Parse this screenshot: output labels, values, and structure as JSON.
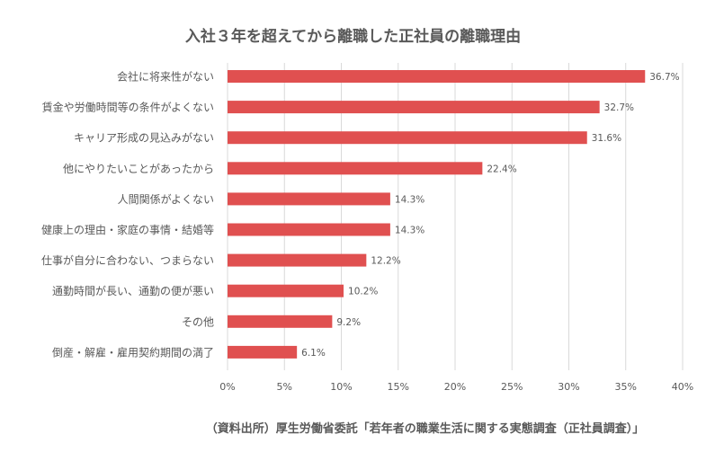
{
  "chart_data": {
    "type": "bar",
    "orientation": "horizontal",
    "title": "入社３年を超えてから離職した正社員の離職理由",
    "source": "（資料出所）厚生労働省委託「若年者の職業生活に関する実態調査（正社員調査）」",
    "categories": [
      "会社に将来性がない",
      "賃金や労働時間等の条件がよくない",
      "キャリア形成の見込みがない",
      "他にやりたいことがあったから",
      "人間関係がよくない",
      "健康上の理由・家庭の事情・結婚等",
      "仕事が自分に合わない、つまらない",
      "通勤時間が長い、通勤の便が悪い",
      "その他",
      "倒産・解雇・雇用契約期間の満了"
    ],
    "values": [
      36.7,
      32.7,
      31.6,
      22.4,
      14.3,
      14.3,
      12.2,
      10.2,
      9.2,
      6.1
    ],
    "value_labels": [
      "36.7%",
      "32.7%",
      "31.6%",
      "22.4%",
      "14.3%",
      "14.3%",
      "12.2%",
      "10.2%",
      "9.2%",
      "6.1%"
    ],
    "x_ticks": [
      0,
      5,
      10,
      15,
      20,
      25,
      30,
      35,
      40
    ],
    "x_tick_labels": [
      "0%",
      "5%",
      "10%",
      "15%",
      "20%",
      "25%",
      "30%",
      "35%",
      "40%"
    ],
    "xlim": [
      0,
      40
    ],
    "grid": "vertical",
    "legend": "none",
    "bar_color": "#e05050",
    "grid_color": "#d9d9d9"
  }
}
